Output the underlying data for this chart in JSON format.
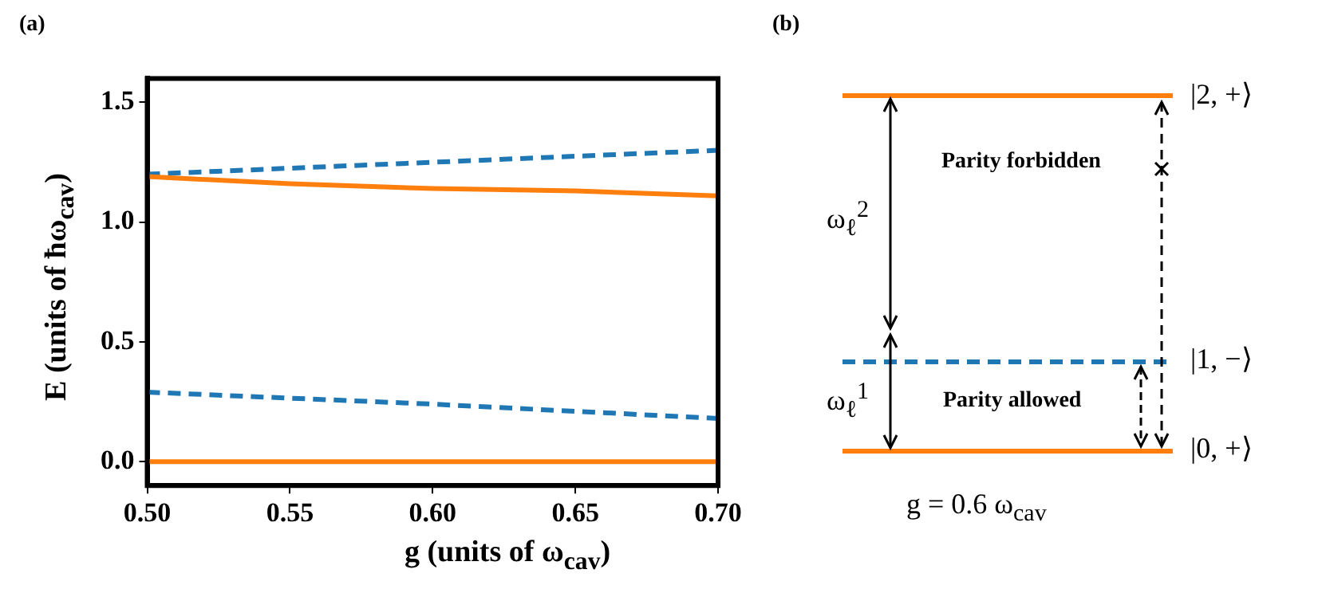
{
  "chart_data": [
    {
      "type": "line",
      "title": "(a)",
      "xlabel": "g (units of ω$_{cav}$)",
      "ylabel": "E (units of ħω$_{cav}$)",
      "xlim": [
        0.5,
        0.7
      ],
      "xticks": [
        {
          "value": 0.5,
          "label": "0.50"
        },
        {
          "value": 0.55,
          "label": "0.55"
        },
        {
          "value": 0.6,
          "label": "0.60"
        },
        {
          "value": 0.65,
          "label": "0.65"
        },
        {
          "value": 0.7,
          "label": "0.70"
        }
      ],
      "ylim": [
        -0.1,
        1.6
      ],
      "yticks": [
        {
          "value": 0,
          "label": "0.0"
        },
        {
          "value": 0.5,
          "label": "0.5"
        },
        {
          "value": 1,
          "label": "1.0"
        },
        {
          "value": 1.5,
          "label": "1.5"
        }
      ],
      "grid": false,
      "marker": "none",
      "series": [
        {
          "color": "#ff7f0e",
          "line_style": "solid",
          "x": [
            0.5,
            0.6,
            0.7
          ],
          "values": [
            0,
            0,
            0
          ]
        },
        {
          "color": "#1f77b4",
          "line_style": "dashed",
          "x": [
            0.5,
            0.6,
            0.7
          ],
          "values": [
            0.29,
            0.24,
            0.18
          ]
        },
        {
          "color": "#ff7f0e",
          "line_style": "solid",
          "x": [
            0.5,
            0.55,
            0.6,
            0.65,
            0.7
          ],
          "values": [
            1.19,
            1.16,
            1.14,
            1.13,
            1.11
          ]
        },
        {
          "color": "#1f77b4",
          "line_style": "dashed",
          "x": [
            0.5,
            0.6,
            0.7
          ],
          "values": [
            1.2,
            1.25,
            1.3
          ]
        }
      ]
    },
    {
      "type": "other",
      "title": "(b)",
      "annotations": [
        "|2, +⟩",
        "|1, −⟩",
        "|0, +⟩",
        "Parity forbidden",
        "Parity allowed",
        "ω$_{ℓ}$$^{2}$",
        "ω$_{ℓ}$$^{1}$",
        "g = 0.6 ω$_{cav}$"
      ]
    }
  ]
}
